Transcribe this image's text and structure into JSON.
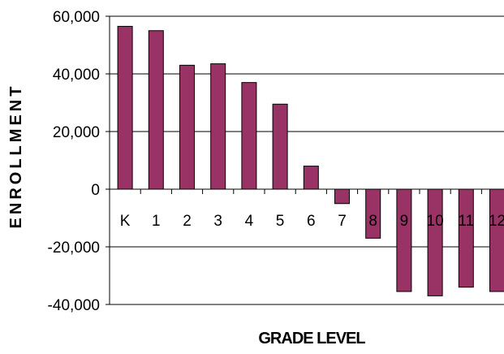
{
  "chart_data": {
    "type": "bar",
    "categories": [
      "K",
      "1",
      "2",
      "3",
      "4",
      "5",
      "6",
      "7",
      "8",
      "9",
      "10",
      "11",
      "12"
    ],
    "values": [
      56500,
      55000,
      43000,
      43500,
      37000,
      29500,
      8000,
      -5000,
      -17000,
      -35500,
      -37000,
      -34000,
      -35500
    ],
    "title": "",
    "xlabel": "GRADE LEVEL",
    "ylabel": "ENROLLMENT",
    "ylim": [
      -40000,
      60000
    ],
    "yticks": [
      60000,
      40000,
      20000,
      0,
      -20000,
      -40000
    ],
    "ytick_labels": [
      "60,000",
      "40,000",
      "20,000",
      "0",
      "-20,000",
      "-40,000"
    ],
    "grid": true,
    "legend": "none",
    "colors": {
      "bar_fill": "#993366",
      "bar_stroke": "#000000",
      "grid": "#000000"
    }
  }
}
